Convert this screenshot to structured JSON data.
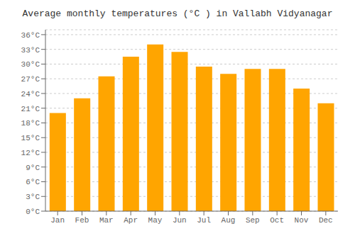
{
  "chart_data": {
    "type": "bar",
    "title": "Average monthly temperatures (°C ) in Vallabh Vidyanagar",
    "categories": [
      "Jan",
      "Feb",
      "Mar",
      "Apr",
      "May",
      "Jun",
      "Jul",
      "Aug",
      "Sep",
      "Oct",
      "Nov",
      "Dec"
    ],
    "values": [
      20,
      23,
      27.5,
      31.5,
      34,
      32.5,
      29.5,
      28,
      29,
      29,
      25,
      22
    ],
    "color": "#FFA500",
    "ylim": [
      0,
      37
    ],
    "yticks": [
      {
        "value": 0,
        "label": "0°C"
      },
      {
        "value": 3,
        "label": "3°C"
      },
      {
        "value": 6,
        "label": "6°C"
      },
      {
        "value": 9,
        "label": "9°C"
      },
      {
        "value": 12,
        "label": "12°C"
      },
      {
        "value": 15,
        "label": "15°C"
      },
      {
        "value": 18,
        "label": "18°C"
      },
      {
        "value": 21,
        "label": "21°C"
      },
      {
        "value": 24,
        "label": "24°C"
      },
      {
        "value": 27,
        "label": "27°C"
      },
      {
        "value": 30,
        "label": "30°C"
      },
      {
        "value": 33,
        "label": "33°C"
      },
      {
        "value": 36,
        "label": "36°C"
      }
    ],
    "grid": true
  }
}
